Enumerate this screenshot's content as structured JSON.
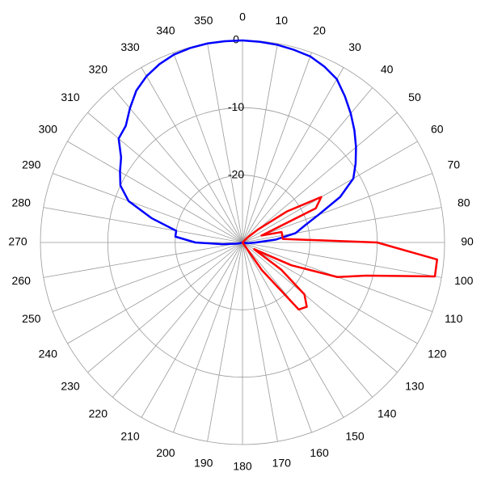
{
  "chart_data": {
    "type": "polar",
    "theta": [
      0,
      5,
      10,
      15,
      20,
      25,
      30,
      35,
      40,
      45,
      50,
      55,
      60,
      65,
      70,
      75,
      80,
      85,
      90,
      95,
      100,
      105,
      110,
      115,
      120,
      125,
      130,
      135,
      140,
      145,
      150,
      155,
      160,
      165,
      170,
      175,
      180,
      185,
      190,
      195,
      200,
      205,
      210,
      215,
      220,
      225,
      230,
      235,
      240,
      245,
      250,
      255,
      260,
      265,
      270,
      275,
      280,
      285,
      290,
      295,
      300,
      305,
      310,
      315,
      320,
      325,
      330,
      335,
      340,
      345,
      350,
      355
    ],
    "series": [
      {
        "color": "#0000ff",
        "values": [
          0,
          -0.1,
          -0.2,
          -0.4,
          -0.6,
          -1.2,
          -2,
          -3.5,
          -5,
          -6.5,
          -8,
          -9.5,
          -11,
          -14,
          -18,
          -20.5,
          -22,
          -25,
          -28,
          -29,
          -29.5,
          -30,
          -30,
          -30,
          -30,
          -30,
          -30,
          -30,
          -30,
          -30,
          -30,
          -30,
          -30,
          -30,
          -30,
          -30,
          -30,
          -30,
          -30,
          -30,
          -30,
          -30,
          -30,
          -30,
          -30,
          -30,
          -30,
          -30,
          -30,
          -30,
          -30,
          -29.5,
          -29,
          -27,
          -23,
          -20,
          -20,
          -16,
          -12,
          -10,
          -9,
          -8,
          -6,
          -5.5,
          -4,
          -2.5,
          -1.5,
          -0.8,
          -0.3,
          -0.1,
          0,
          0
        ]
      },
      {
        "color": "#ff0000",
        "values": [
          -30,
          -30,
          -30,
          -30,
          -30,
          -30,
          -30,
          -30,
          -30,
          -29,
          -27,
          -22,
          -16.5,
          -18,
          -27,
          -24,
          -24,
          -24,
          -10,
          -1,
          -1,
          -11,
          -15,
          -22,
          -28,
          -23,
          -18,
          -16.5,
          -17,
          -25,
          -30,
          -30,
          -30,
          -30,
          -30,
          -30,
          -30,
          -30,
          -30,
          -30,
          -30,
          -30,
          -30,
          -30,
          -30,
          -30,
          -30,
          -30,
          -30,
          -30,
          -30,
          -30,
          -30,
          -30,
          -30,
          -30,
          -30,
          -30,
          -30,
          -30,
          -30,
          -30,
          -30,
          -30,
          -30,
          -30,
          -30,
          -30,
          -30,
          -30,
          -30,
          -30
        ]
      }
    ],
    "rlim": [
      -30,
      0
    ],
    "rticks": [
      0,
      -10,
      -20
    ],
    "thetaticks": [
      0,
      10,
      20,
      30,
      40,
      50,
      60,
      70,
      80,
      90,
      100,
      110,
      120,
      130,
      140,
      150,
      160,
      170,
      180,
      190,
      200,
      210,
      220,
      230,
      240,
      250,
      260,
      270,
      280,
      290,
      300,
      310,
      320,
      330,
      340,
      350
    ]
  }
}
